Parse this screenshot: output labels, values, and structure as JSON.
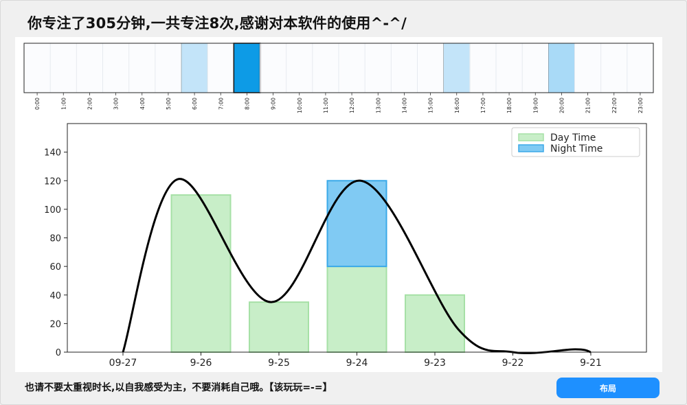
{
  "summary": "你专注了305分钟,一共专注8次,感谢对本软件的使用^-^/",
  "footer_text": "也请不要太重视时长,以自我感受为主，不要消耗自己哦。【该玩玩=-=】",
  "layout_button_label": "布局",
  "colors": {
    "accent": "#1e90ff",
    "day_fill": "#c8eec8",
    "day_edge": "#a6e0a6",
    "night_fill": "#80caf3",
    "night_edge": "#3aa9e8",
    "hour_light": "#c3e4f9",
    "hour_mid": "#a9daf7",
    "hour_dark": "#0d9be6",
    "curve": "#000000"
  },
  "chart_data": [
    {
      "type": "heatmap",
      "hours": [
        "0:00",
        "1:00",
        "2:00",
        "3:00",
        "4:00",
        "5:00",
        "6:00",
        "7:00",
        "8:00",
        "9:00",
        "10:00",
        "11:00",
        "12:00",
        "13:00",
        "14:00",
        "15:00",
        "16:00",
        "17:00",
        "18:00",
        "19:00",
        "20:00",
        "21:00",
        "22:00",
        "23:00"
      ],
      "intensity": [
        0,
        0,
        0,
        0,
        0,
        0,
        0.25,
        0,
        1,
        0,
        0,
        0,
        0,
        0,
        0,
        0,
        0.25,
        0,
        0,
        0,
        0.4,
        0,
        0,
        0
      ]
    },
    {
      "type": "bar",
      "categories": [
        "09-27",
        "9-26",
        "9-25",
        "9-24",
        "9-23",
        "9-22",
        "9-21"
      ],
      "series": [
        {
          "name": "Day Time",
          "values": [
            0,
            110,
            35,
            60,
            40,
            0,
            0
          ]
        },
        {
          "name": "Night Time",
          "values": [
            0,
            0,
            0,
            60,
            0,
            0,
            0
          ]
        }
      ],
      "yticks": [
        0,
        20,
        40,
        60,
        80,
        100,
        120,
        140
      ],
      "ylim": [
        0,
        160
      ],
      "legend": "top-right",
      "curve": "smooth total"
    }
  ]
}
